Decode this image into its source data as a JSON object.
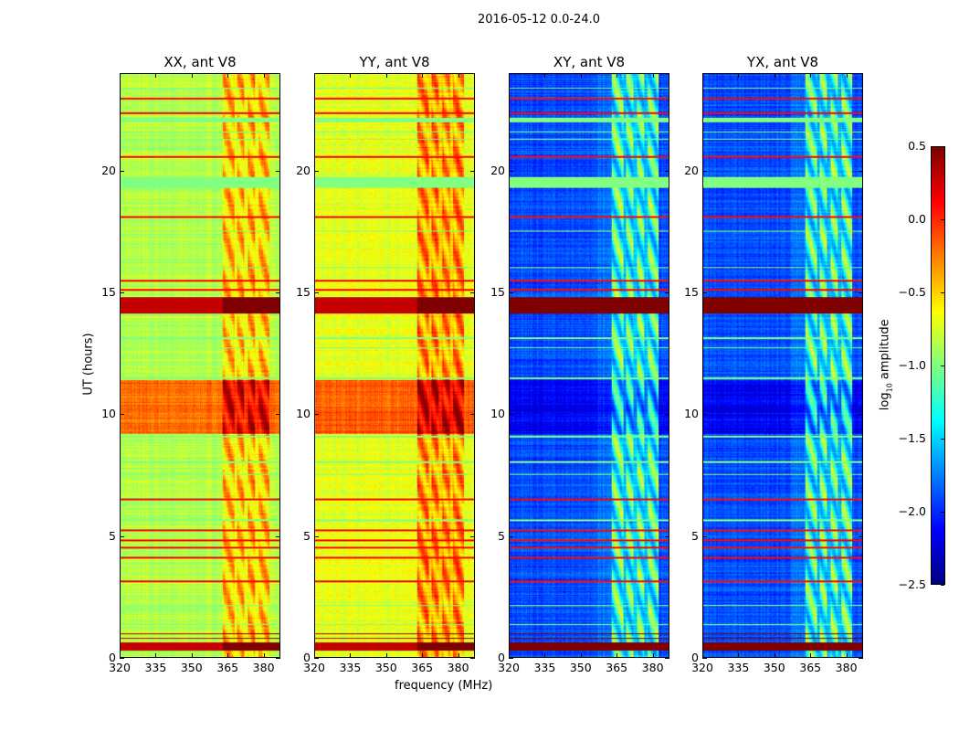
{
  "chart_data": {
    "type": "heatmap",
    "title": "2016-05-12 0.0-24.0",
    "xlabel": "frequency (MHz)",
    "ylabel": "UT (hours)",
    "colorbar_label_prefix": "log",
    "colorbar_label_sub": "10",
    "colorbar_label_suffix": " amplitude",
    "colormap": "jet",
    "clim": [
      -2.5,
      0.5
    ],
    "colorbar_ticks": [
      "0.5",
      "0.0",
      "−0.5",
      "−1.0",
      "−1.5",
      "−2.0",
      "−2.5"
    ],
    "colorbar_tick_values": [
      0.5,
      0.0,
      -0.5,
      -1.0,
      -1.5,
      -2.0,
      -2.5
    ],
    "xlim": [
      320,
      387
    ],
    "ylim": [
      0,
      24
    ],
    "x_ticks": [
      320,
      335,
      350,
      365,
      380
    ],
    "x_tick_labels": [
      "320",
      "335",
      "350",
      "365",
      "380"
    ],
    "y_ticks": [
      0,
      5,
      10,
      15,
      20
    ],
    "y_tick_labels": [
      "0",
      "5",
      "10",
      "15",
      "20"
    ],
    "rfi_band_mhz": [
      363,
      383
    ],
    "rfi_gaps_mhz": [
      368.5,
      373,
      377.5
    ],
    "panels": [
      {
        "title": "XX, ant V8",
        "base": -0.85,
        "day_block": [
          9.2,
          11.4,
          -0.2
        ],
        "rfi_boost": 0.65
      },
      {
        "title": "YY, ant V8",
        "base": -0.7,
        "day_block": [
          9.2,
          11.4,
          -0.15
        ],
        "rfi_boost": 0.7
      },
      {
        "title": "XY, ant V8",
        "base": -1.9,
        "day_block": [
          9.2,
          11.4,
          -2.15
        ],
        "rfi_boost": 1.1
      },
      {
        "title": "YX, ant V8",
        "base": -1.9,
        "day_block": [
          9.2,
          11.4,
          -2.15
        ],
        "rfi_boost": 1.1
      }
    ],
    "saturated_rows_hours": [
      [
        0.25,
        0.6
      ],
      [
        0.75,
        0.8
      ],
      [
        0.92,
        0.98
      ],
      [
        14.15,
        14.8
      ]
    ],
    "red_lines_hours": [
      3.1,
      4.1,
      4.5,
      4.8,
      5.2,
      6.5,
      15.1,
      15.5,
      18.1,
      20.6,
      22.4,
      23.0
    ],
    "flagged_rows_hours": [
      [
        19.3,
        19.75
      ],
      [
        22.0,
        22.2
      ],
      [
        1.3,
        1.35
      ],
      [
        2.1,
        2.15
      ],
      [
        7.5,
        7.55
      ],
      [
        8.0,
        8.05
      ],
      [
        11.45,
        11.5
      ],
      [
        12.7,
        12.75
      ],
      [
        13.1,
        13.15
      ],
      [
        16.0,
        16.05
      ],
      [
        17.5,
        17.55
      ],
      [
        21.3,
        21.35
      ],
      [
        21.6,
        21.65
      ],
      [
        23.4,
        23.45
      ],
      [
        5.6,
        5.65
      ],
      [
        9.05,
        9.1
      ]
    ],
    "flag_value": -1.0
  }
}
